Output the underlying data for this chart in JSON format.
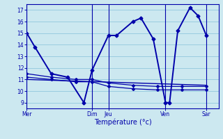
{
  "background_color": "#cce8f0",
  "grid_color": "#99cce0",
  "line_color": "#0000aa",
  "title": "Température (°c)",
  "ylabel_values": [
    9,
    10,
    11,
    12,
    13,
    14,
    15,
    16,
    17
  ],
  "ylim": [
    8.5,
    17.5
  ],
  "x_tick_labels": [
    "Mer",
    "Dim",
    "Jeu",
    "Ven",
    "Sar"
  ],
  "x_tick_positions": [
    0,
    8,
    10,
    17,
    22
  ],
  "x_vlines": [
    0,
    8,
    10,
    17,
    22
  ],
  "xlim": [
    0,
    23.5
  ],
  "series": [
    {
      "x": [
        0,
        1,
        3,
        5,
        7,
        8,
        10,
        11,
        13,
        14,
        15.5,
        17,
        17.5,
        18.5,
        20,
        21,
        22
      ],
      "y": [
        15,
        13.8,
        11.5,
        11.2,
        9.0,
        11.8,
        14.8,
        14.8,
        16.0,
        16.3,
        14.5,
        9.0,
        9.0,
        15.2,
        17.2,
        16.5,
        14.8
      ],
      "marker": "D",
      "markersize": 2.5,
      "linewidth": 1.4
    },
    {
      "x": [
        0,
        3,
        6,
        8,
        10,
        13,
        16,
        19,
        22
      ],
      "y": [
        11.5,
        11.2,
        11.0,
        11.0,
        10.7,
        10.5,
        10.4,
        10.4,
        10.4
      ],
      "marker": "D",
      "markersize": 2.0,
      "linewidth": 0.9
    },
    {
      "x": [
        0,
        3,
        6,
        8,
        10,
        13,
        16,
        19,
        22
      ],
      "y": [
        11.2,
        11.0,
        10.8,
        10.8,
        10.4,
        10.2,
        10.1,
        10.1,
        10.1
      ],
      "marker": "D",
      "markersize": 2.0,
      "linewidth": 0.9
    },
    {
      "x": [
        0,
        22
      ],
      "y": [
        11.0,
        10.5
      ],
      "marker": null,
      "markersize": 0,
      "linewidth": 1.0
    }
  ]
}
